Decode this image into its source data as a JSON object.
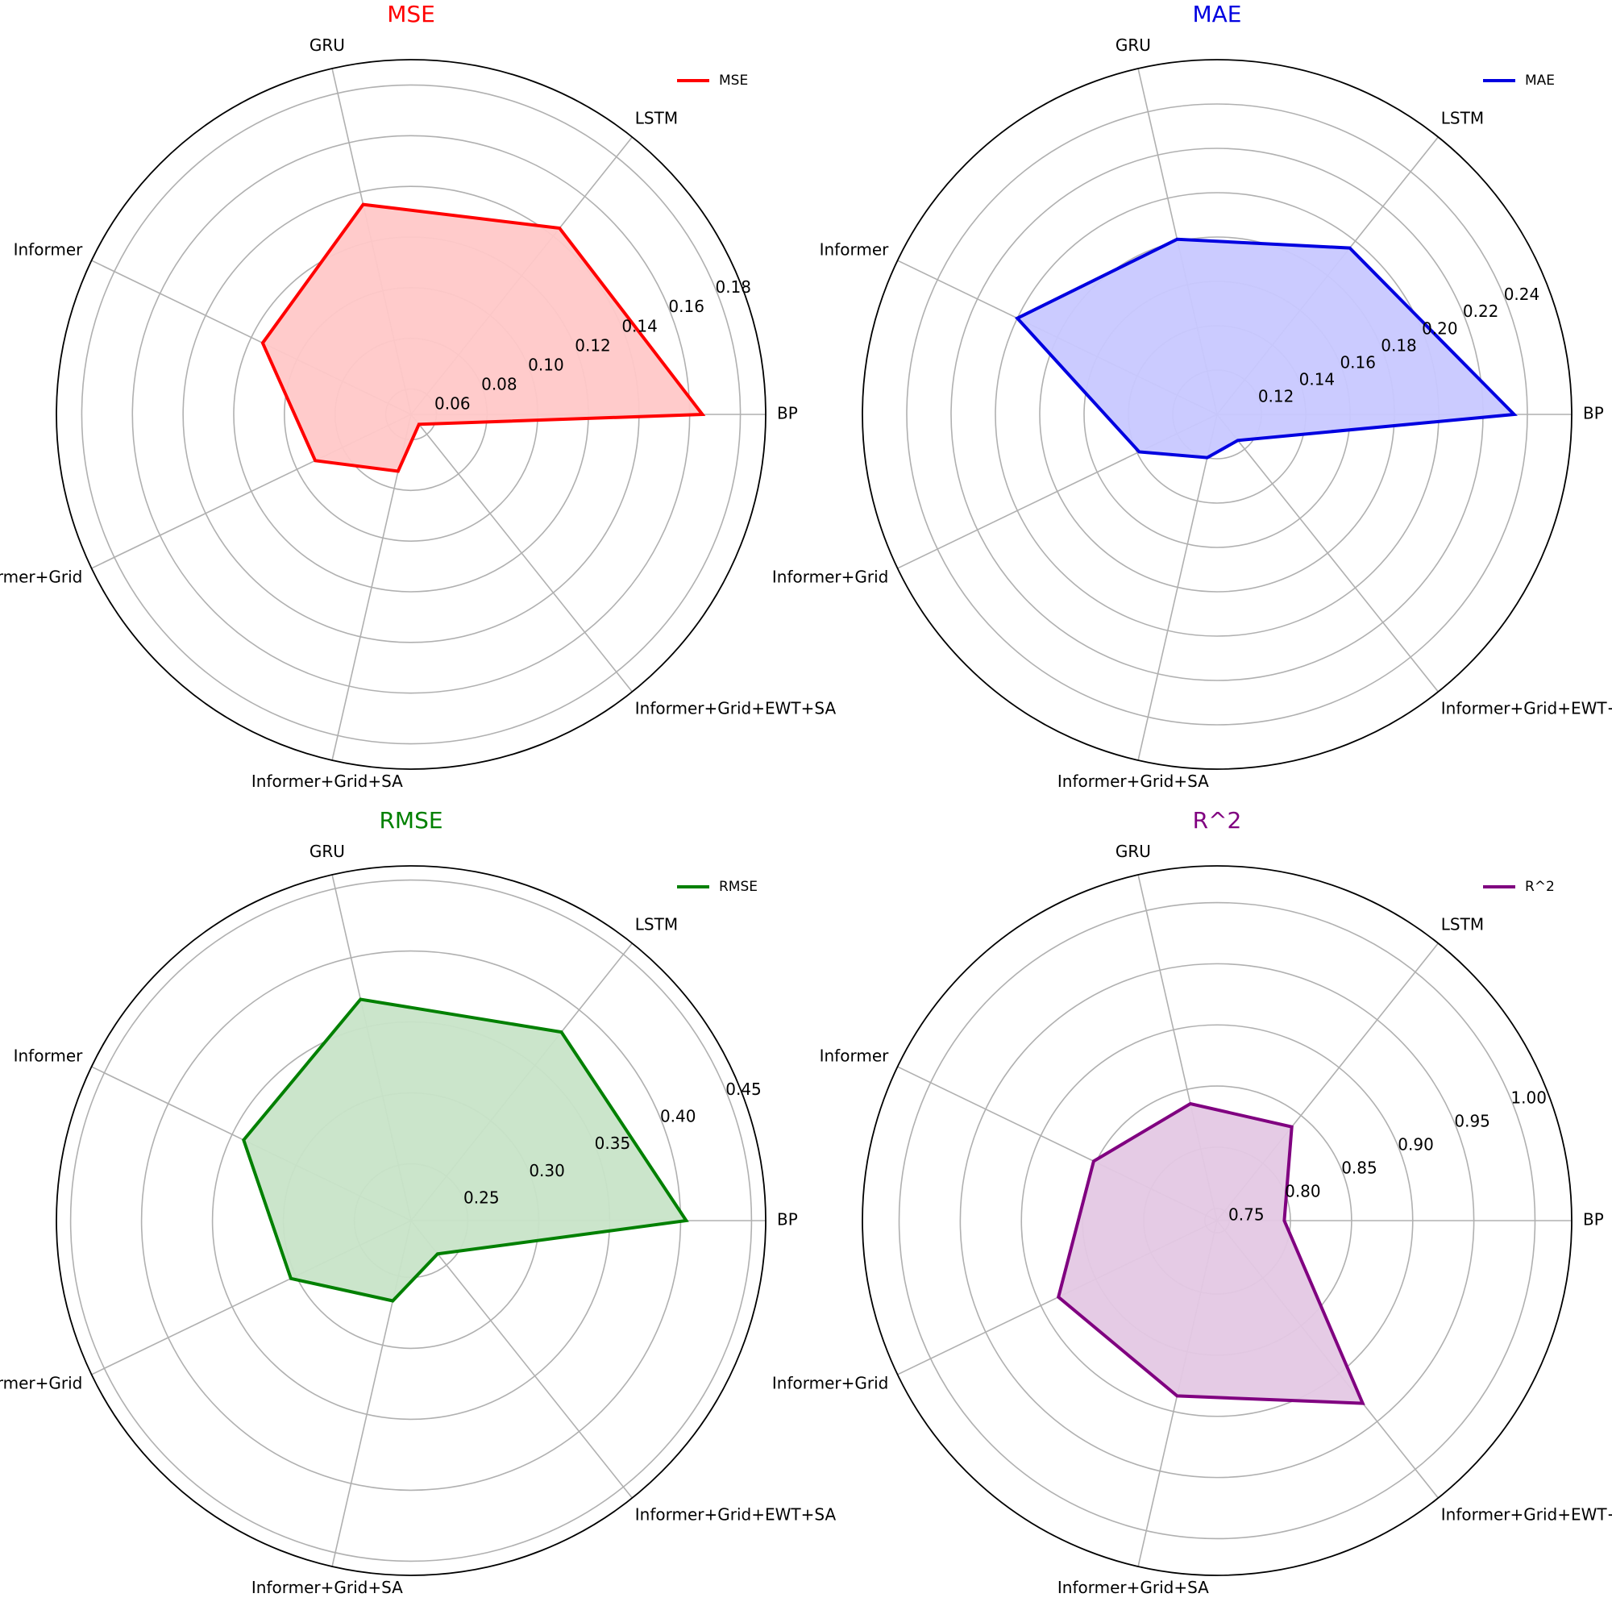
{
  "chart_data": [
    {
      "type": "radar",
      "title": "MSE",
      "color": "#ff0000",
      "fill": "#ffc8c8",
      "legend": "MSE",
      "legend_position": "top-right",
      "rmin": 0.05,
      "rmax": 0.19,
      "ticks": [
        0.06,
        0.08,
        0.1,
        0.12,
        0.14,
        0.16,
        0.18
      ],
      "tick_labels": [
        "0.06",
        "0.08",
        "0.10",
        "0.12",
        "0.14",
        "0.16",
        "0.18"
      ],
      "categories": [
        "BP",
        "LSTM",
        "GRU",
        "Informer",
        "Informer+Grid",
        "Informer+Grid+SA",
        "Informer+Grid+EWT+SA"
      ],
      "values": [
        0.165,
        0.144,
        0.135,
        0.115,
        0.092,
        0.073,
        0.055
      ]
    },
    {
      "type": "radar",
      "title": "MAE",
      "color": "#0000e0",
      "fill": "#c8c8ff",
      "legend": "MAE",
      "legend_position": "top-right",
      "rmin": 0.1,
      "rmax": 0.26,
      "ticks": [
        0.12,
        0.14,
        0.16,
        0.18,
        0.2,
        0.22,
        0.24
      ],
      "tick_labels": [
        "0.12",
        "0.14",
        "0.16",
        "0.18",
        "0.20",
        "0.22",
        "0.24"
      ],
      "categories": [
        "BP",
        "LSTM",
        "GRU",
        "Informer",
        "Informer+Grid",
        "Informer+Grid+SA",
        "Informer+Grid+EWT+SA"
      ],
      "values": [
        0.234,
        0.196,
        0.181,
        0.2,
        0.139,
        0.12,
        0.115
      ]
    },
    {
      "type": "radar",
      "title": "RMSE",
      "color": "#008000",
      "fill": "#c8e4c8",
      "legend": "RMSE",
      "legend_position": "top-right",
      "rmin": 0.21,
      "rmax": 0.46,
      "ticks": [
        0.25,
        0.3,
        0.35,
        0.4,
        0.45
      ],
      "tick_labels": [
        "0.25",
        "0.30",
        "0.35",
        "0.40",
        "0.45"
      ],
      "categories": [
        "BP",
        "LSTM",
        "GRU",
        "Informer",
        "Informer+Grid",
        "Informer+Grid+SA",
        "Informer+Grid+EWT+SA"
      ],
      "values": [
        0.404,
        0.38,
        0.37,
        0.341,
        0.304,
        0.268,
        0.24
      ]
    },
    {
      "type": "radar",
      "title": "R^2",
      "color": "#800080",
      "fill": "#e4c8e4",
      "legend": "R^2",
      "legend_position": "top-right",
      "rmin": 0.74,
      "rmax": 1.03,
      "ticks": [
        0.75,
        0.8,
        0.85,
        0.9,
        0.95,
        1.0
      ],
      "tick_labels": [
        "0.75",
        "0.80",
        "0.85",
        "0.90",
        "0.95",
        "1.00"
      ],
      "categories": [
        "BP",
        "LSTM",
        "GRU",
        "Informer",
        "Informer+Grid",
        "Informer+Grid+SA",
        "Informer+Grid+EWT+SA"
      ],
      "values": [
        0.795,
        0.838,
        0.838,
        0.852,
        0.884,
        0.887,
        0.931
      ]
    }
  ]
}
